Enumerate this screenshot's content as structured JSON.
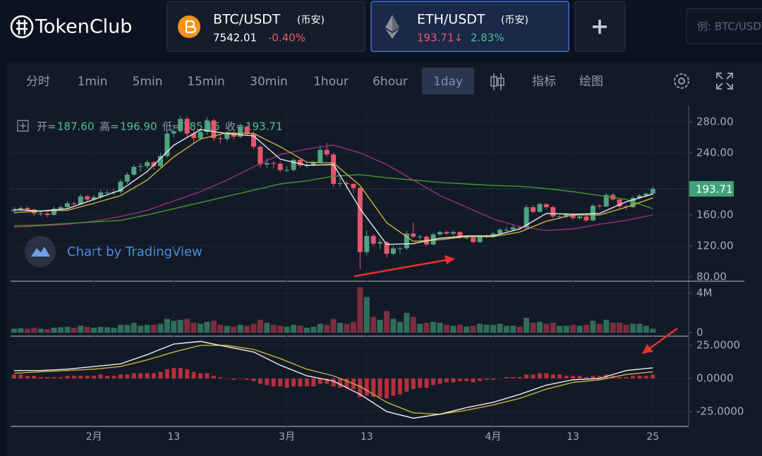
{
  "header": {
    "logo": "TokenClub",
    "tickers": [
      {
        "pair": "BTC/USDT",
        "exchange": "(币安)",
        "price": "7542.01",
        "change": "-0.40%"
      },
      {
        "pair": "ETH/USDT",
        "exchange": "(币安)",
        "price": "193.71↓",
        "change": "2.83%"
      }
    ],
    "search_placeholder": "例: BTC/USDT"
  },
  "toolbar": {
    "intervals": [
      "分时",
      "1min",
      "5min",
      "15min",
      "30min",
      "1hour",
      "6hour",
      "1day"
    ],
    "tools": [
      "指标",
      "绘图"
    ]
  },
  "chart_data": {
    "type": "candlestick",
    "legend": {
      "labels": [
        "开=",
        "高=",
        "低=",
        "收="
      ],
      "values": [
        "187.60",
        "196.90",
        "185.16",
        "193.71"
      ]
    },
    "watermark": "Chart by TradingView",
    "up_color": "#4fa483",
    "down_color": "#e5566d",
    "ylim": [
      75.45,
      300.9
    ],
    "yticks": [
      {
        "value": 80,
        "label": "80.00"
      },
      {
        "value": 120,
        "label": "120.00"
      },
      {
        "value": 160,
        "label": "160.00"
      },
      {
        "value": 240,
        "label": "240.00"
      },
      {
        "value": 280,
        "label": "280.00"
      }
    ],
    "price_label": {
      "value": 193.71,
      "label": "193.71"
    },
    "price_label_color": "#3ea37c",
    "xticks": [
      {
        "value": 12,
        "label": "2月"
      },
      {
        "value": 24,
        "label": "13"
      },
      {
        "value": 41,
        "label": "3月"
      },
      {
        "value": 53,
        "label": "13"
      },
      {
        "value": 72,
        "label": "4月"
      },
      {
        "value": 84,
        "label": "13"
      },
      {
        "value": 96,
        "label": "25"
      }
    ],
    "candles": [
      [
        165,
        170,
        163,
        167
      ],
      [
        167,
        172,
        165,
        169
      ],
      [
        169,
        171,
        164,
        167
      ],
      [
        167,
        168,
        159,
        162
      ],
      [
        162,
        165,
        159,
        162
      ],
      [
        162,
        164,
        157,
        160
      ],
      [
        160,
        171,
        159,
        168
      ],
      [
        168,
        173,
        166,
        170
      ],
      [
        170,
        178,
        168,
        175
      ],
      [
        175,
        177,
        171,
        174
      ],
      [
        174,
        187,
        173,
        184
      ],
      [
        184,
        186,
        177,
        180
      ],
      [
        180,
        186,
        178,
        183
      ],
      [
        183,
        192,
        181,
        189
      ],
      [
        189,
        192,
        186,
        189
      ],
      [
        189,
        193,
        186,
        190
      ],
      [
        190,
        206,
        188,
        203
      ],
      [
        203,
        215,
        200,
        212
      ],
      [
        212,
        225,
        210,
        222
      ],
      [
        222,
        227,
        216,
        223
      ],
      [
        223,
        231,
        220,
        228
      ],
      [
        228,
        230,
        218,
        223
      ],
      [
        223,
        240,
        221,
        236
      ],
      [
        236,
        268,
        234,
        265
      ],
      [
        265,
        277,
        260,
        268
      ],
      [
        268,
        288,
        266,
        284
      ],
      [
        284,
        287,
        260,
        265
      ],
      [
        265,
        270,
        252,
        259
      ],
      [
        259,
        270,
        256,
        267
      ],
      [
        267,
        286,
        264,
        282
      ],
      [
        282,
        284,
        255,
        259
      ],
      [
        259,
        264,
        252,
        258
      ],
      [
        258,
        268,
        255,
        265
      ],
      [
        265,
        268,
        257,
        261
      ],
      [
        261,
        278,
        259,
        274
      ],
      [
        274,
        276,
        262,
        265
      ],
      [
        265,
        268,
        245,
        248
      ],
      [
        248,
        250,
        221,
        225
      ],
      [
        225,
        233,
        220,
        227
      ],
      [
        227,
        230,
        220,
        226
      ],
      [
        226,
        229,
        215,
        218
      ],
      [
        218,
        223,
        215,
        218
      ],
      [
        218,
        233,
        216,
        231
      ],
      [
        231,
        233,
        221,
        224
      ],
      [
        224,
        228,
        221,
        224
      ],
      [
        224,
        230,
        222,
        228
      ],
      [
        228,
        250,
        226,
        244
      ],
      [
        244,
        253,
        235,
        238
      ],
      [
        238,
        240,
        196,
        200
      ],
      [
        200,
        208,
        196,
        201
      ],
      [
        201,
        204,
        194,
        200
      ],
      [
        200,
        201,
        188,
        195
      ],
      [
        195,
        196,
        90,
        112
      ],
      [
        112,
        140,
        108,
        133
      ],
      [
        133,
        136,
        120,
        123
      ],
      [
        123,
        129,
        116,
        125
      ],
      [
        125,
        126,
        105,
        110
      ],
      [
        110,
        120,
        108,
        117
      ],
      [
        117,
        119,
        110,
        117
      ],
      [
        117,
        140,
        115,
        136
      ],
      [
        136,
        150,
        130,
        132
      ],
      [
        132,
        135,
        128,
        132
      ],
      [
        132,
        134,
        120,
        122
      ],
      [
        122,
        137,
        121,
        135
      ],
      [
        135,
        140,
        133,
        138
      ],
      [
        138,
        140,
        134,
        136
      ],
      [
        136,
        140,
        134,
        138
      ],
      [
        138,
        139,
        129,
        131
      ],
      [
        131,
        133,
        128,
        131
      ],
      [
        131,
        133,
        123,
        125
      ],
      [
        125,
        134,
        124,
        132
      ],
      [
        132,
        135,
        130,
        133
      ],
      [
        133,
        138,
        131,
        136
      ],
      [
        136,
        143,
        134,
        141
      ],
      [
        141,
        145,
        138,
        141
      ],
      [
        141,
        147,
        139,
        144
      ],
      [
        144,
        146,
        141,
        143
      ],
      [
        143,
        173,
        142,
        170
      ],
      [
        170,
        173,
        162,
        164
      ],
      [
        164,
        176,
        163,
        174
      ],
      [
        174,
        175,
        168,
        170
      ],
      [
        170,
        172,
        156,
        158
      ],
      [
        158,
        160,
        155,
        158
      ],
      [
        158,
        163,
        156,
        161
      ],
      [
        161,
        162,
        154,
        156
      ],
      [
        156,
        160,
        154,
        158
      ],
      [
        158,
        159,
        151,
        153
      ],
      [
        153,
        174,
        152,
        172
      ],
      [
        172,
        174,
        168,
        171
      ],
      [
        171,
        188,
        170,
        186
      ],
      [
        186,
        188,
        178,
        180
      ],
      [
        180,
        181,
        168,
        171
      ],
      [
        171,
        173,
        167,
        170
      ],
      [
        170,
        184,
        169,
        182
      ],
      [
        182,
        187,
        180,
        185
      ],
      [
        185,
        189,
        183,
        187.6
      ],
      [
        187.6,
        196.9,
        185.16,
        193.71
      ]
    ],
    "line_x": [
      0,
      4,
      8,
      12,
      16,
      20,
      24,
      28,
      32,
      36,
      40,
      44,
      48,
      52,
      56,
      60,
      64,
      68,
      72,
      76,
      80,
      84,
      88,
      92,
      96
    ],
    "ma_lines": [
      {
        "color": "#9c2f7d",
        "values": [
          144,
          146,
          148,
          152,
          158,
          166,
          178,
          190,
          205,
          222,
          238,
          245,
          250,
          240,
          225,
          205,
          185,
          170,
          155,
          145,
          140,
          142,
          148,
          153,
          160
        ]
      },
      {
        "color": "#3f9a2e",
        "values": [
          146,
          147,
          149,
          151,
          153,
          160,
          168,
          176,
          184,
          192,
          200,
          204,
          210,
          212,
          208,
          205,
          202,
          200,
          198,
          197,
          194,
          190,
          185,
          180,
          168
        ]
      },
      {
        "color": "#c9b43a",
        "values": [
          163,
          165,
          166,
          175,
          185,
          205,
          235,
          258,
          266,
          265,
          248,
          228,
          227,
          198,
          150,
          126,
          128,
          132,
          132,
          138,
          152,
          160,
          160,
          170,
          182
        ]
      },
      {
        "color": "#e8e8e8",
        "values": [
          167,
          165,
          168,
          180,
          192,
          216,
          250,
          270,
          265,
          262,
          232,
          224,
          225,
          168,
          122,
          123,
          130,
          133,
          133,
          142,
          162,
          161,
          162,
          177,
          187
        ]
      }
    ],
    "volume": {
      "ylim": [
        0,
        5140000
      ],
      "yticks": [
        {
          "value": 4000000,
          "label": "4M"
        },
        0
      ],
      "up_color": "#2f6e5b",
      "down_color": "#7d2d3e",
      "values": [
        400000,
        450000,
        400000,
        500000,
        400000,
        350000,
        500000,
        550000,
        600000,
        500000,
        700000,
        600000,
        500000,
        600000,
        550000,
        500000,
        800000,
        800000,
        1000000,
        700000,
        800000,
        800000,
        900000,
        1400000,
        1200000,
        1300000,
        1400000,
        1000000,
        900000,
        1100000,
        1200000,
        800000,
        700000,
        600000,
        800000,
        700000,
        900000,
        1300000,
        1000000,
        800000,
        700000,
        600000,
        800000,
        700000,
        500000,
        600000,
        900000,
        800000,
        1400000,
        1000000,
        900000,
        1100000,
        4600000,
        3600000,
        1600000,
        1300000,
        2200000,
        1400000,
        1100000,
        2000000,
        1600000,
        900000,
        1000000,
        1100000,
        1000000,
        800000,
        700000,
        800000,
        600000,
        700000,
        900000,
        800000,
        800000,
        900000,
        700000,
        700000,
        600000,
        1500000,
        1000000,
        1100000,
        900000,
        1000000,
        700000,
        700000,
        800000,
        700000,
        800000,
        1200000,
        900000,
        1300000,
        1000000,
        1000000,
        800000,
        900000,
        900000,
        700000,
        400000
      ]
    },
    "macd": {
      "ylim": [
        -36.2,
        31.4
      ],
      "yticks": [
        {
          "value": 25,
          "label": "25.0000"
        },
        {
          "value": 0,
          "label": "0.0000"
        },
        {
          "value": -25,
          "label": "-25.0000"
        }
      ],
      "hist_color": "#b3303e",
      "hist": [
        3,
        3,
        2,
        2,
        1,
        1,
        1,
        1,
        2,
        2,
        2,
        2,
        2,
        3,
        2,
        2,
        3,
        3,
        4,
        4,
        4,
        4,
        5,
        7,
        8,
        8,
        7,
        5,
        4,
        4,
        2,
        1,
        0,
        -1,
        0,
        -1,
        -2,
        -4,
        -5,
        -6,
        -6,
        -7,
        -6,
        -6,
        -6,
        -6,
        -4,
        -4,
        -6,
        -7,
        -7,
        -8,
        -14,
        -13,
        -14,
        -14,
        -15,
        -13,
        -12,
        -10,
        -8,
        -7,
        -7,
        -5,
        -4,
        -3,
        -3,
        -2,
        -2,
        -3,
        -2,
        -1,
        -1,
        0,
        1,
        1,
        1,
        3,
        3,
        4,
        4,
        3,
        3,
        2,
        2,
        2,
        1,
        2,
        2,
        3,
        2,
        1,
        1,
        2,
        2,
        2,
        3
      ],
      "lines": [
        {
          "color": "#c9b43a",
          "values": [
            4,
            5,
            6,
            7,
            9,
            14,
            20,
            25,
            25,
            22,
            15,
            7,
            2,
            -6,
            -18,
            -26,
            -27,
            -24,
            -20,
            -15,
            -8,
            -3,
            -1,
            3,
            5
          ]
        },
        {
          "color": "#eeeeee",
          "values": [
            6,
            6,
            7,
            9,
            11,
            18,
            26,
            28,
            24,
            20,
            10,
            2,
            -2,
            -12,
            -25,
            -30,
            -27,
            -22,
            -18,
            -12,
            -5,
            -1,
            0,
            6,
            8
          ]
        }
      ]
    }
  }
}
